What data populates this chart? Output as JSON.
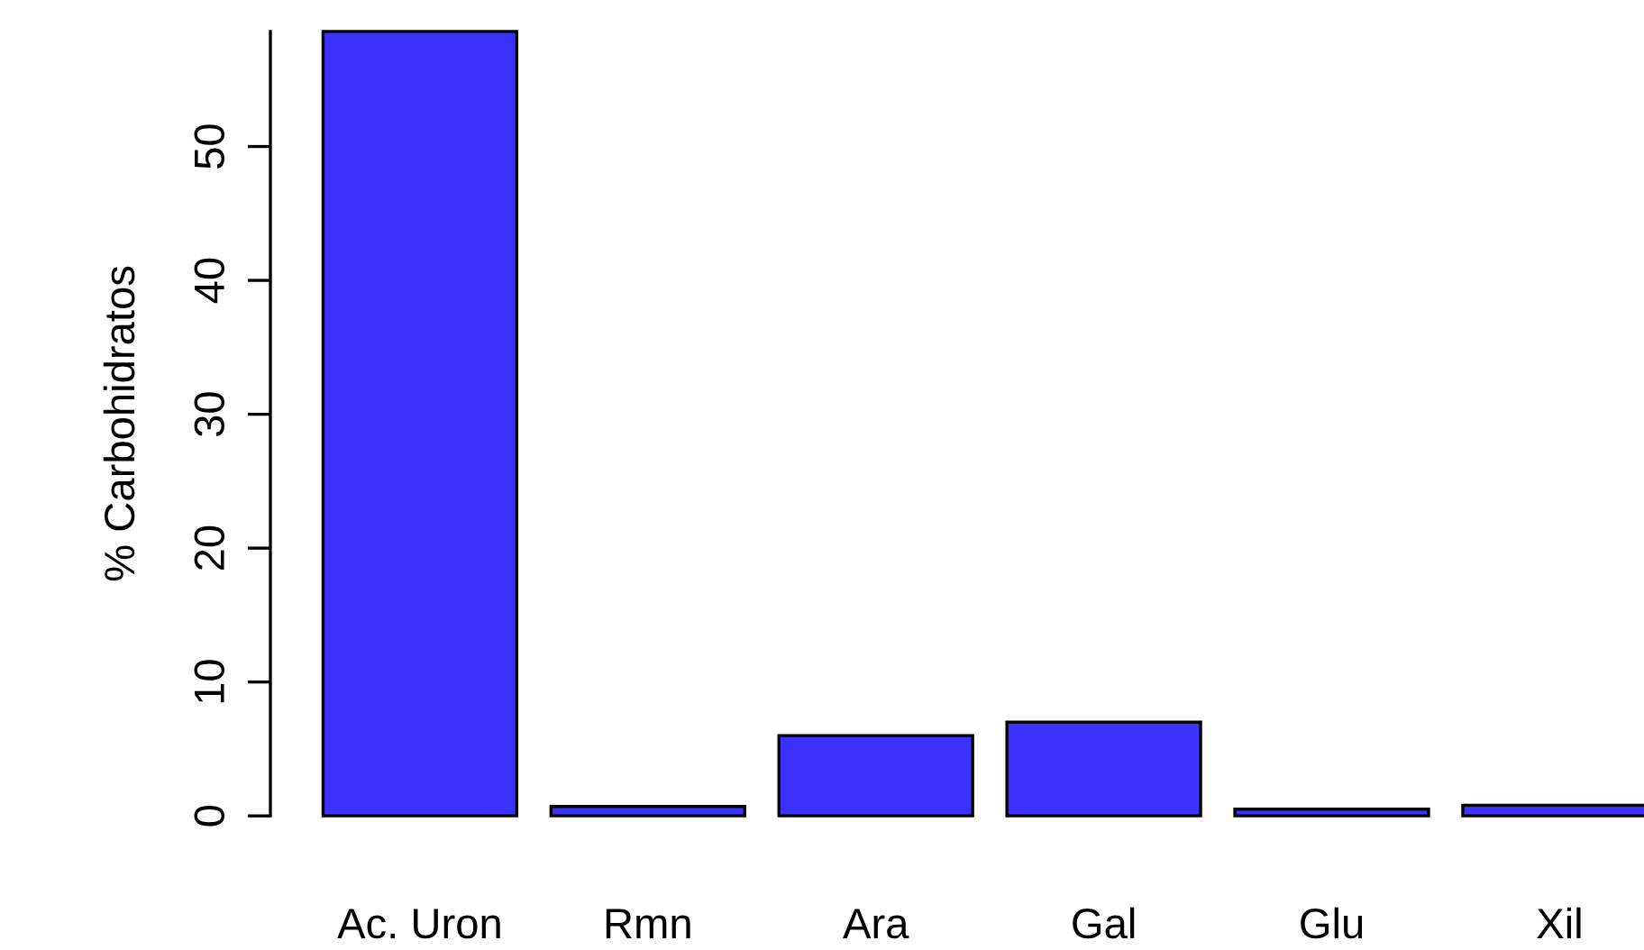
{
  "chart_data": {
    "type": "bar",
    "ylabel": "% Carbohidratos",
    "categories": [
      "Ac. Uron",
      "Rmn",
      "Ara",
      "Gal",
      "Glu",
      "Xil"
    ],
    "values": [
      58.6,
      0.7,
      6.0,
      7.0,
      0.5,
      0.8
    ],
    "color": "#3c32ff",
    "ylim": [
      0,
      58.6
    ],
    "yticks": [
      0,
      10,
      20,
      30,
      40,
      50
    ],
    "grid": false
  }
}
